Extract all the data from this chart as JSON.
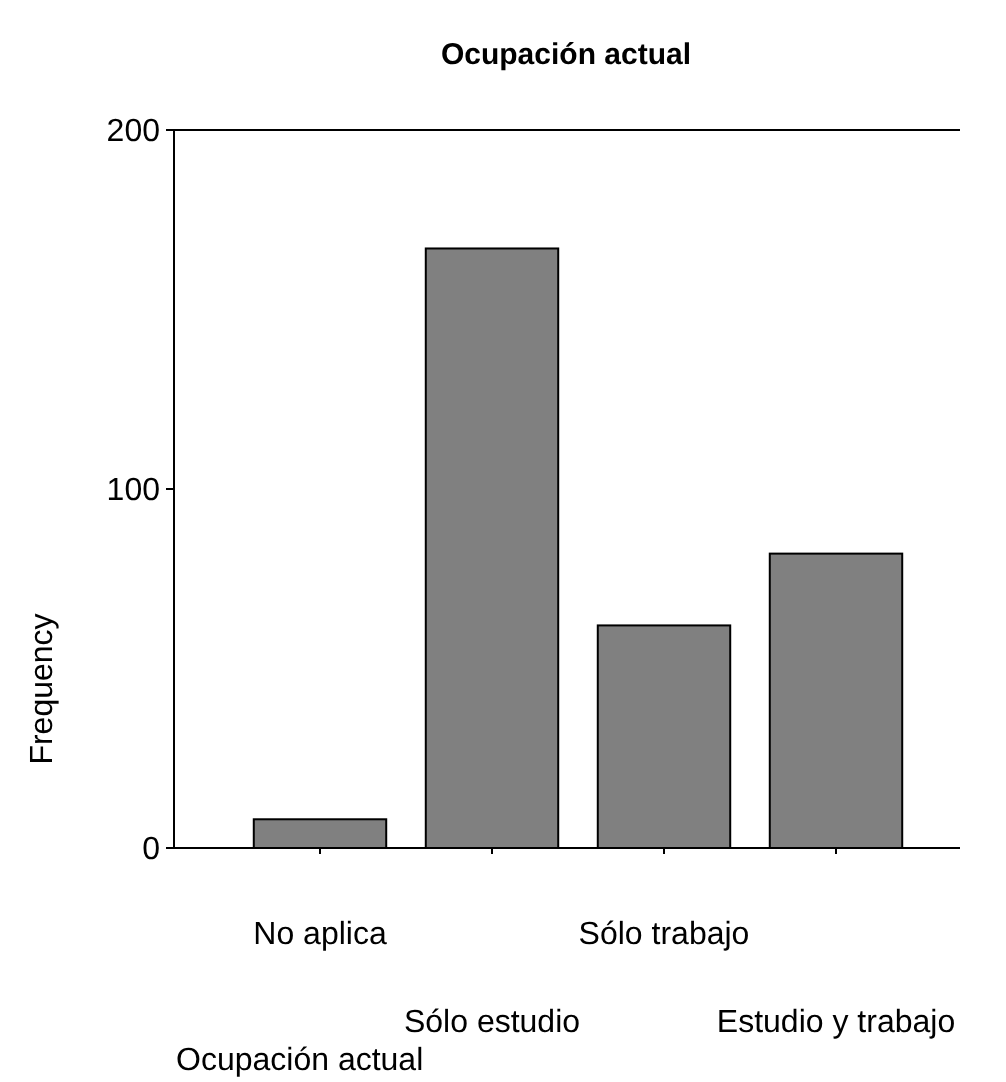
{
  "chart_data": {
    "type": "bar",
    "title": "Ocupación actual",
    "xlabel": "Ocupación actual",
    "ylabel": "Frequency",
    "categories": [
      "No aplica",
      "Sólo estudio",
      "Sólo trabajo",
      "Estudio y trabajo"
    ],
    "values": [
      8,
      167,
      62,
      82
    ],
    "color": "#808080",
    "ylim": [
      0,
      200
    ],
    "yticks": [
      0,
      100,
      200
    ],
    "grid": false
  }
}
